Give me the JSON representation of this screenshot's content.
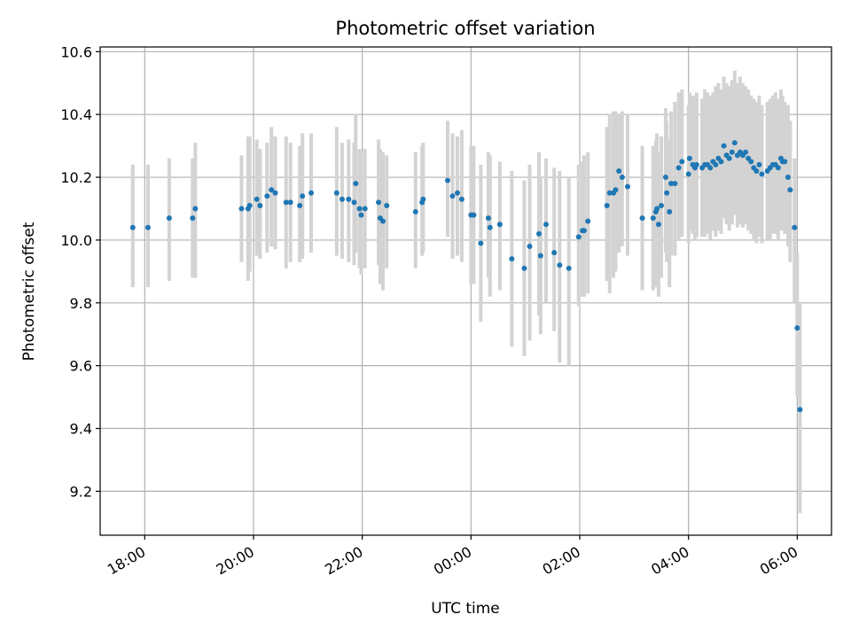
{
  "chart_data": {
    "type": "scatter",
    "title": "Photometric offset variation",
    "xlabel": "UTC time",
    "ylabel": "Photometric offset",
    "xaxis_unit": "hours (UTC, continuing past midnight)",
    "xlim": [
      17.18,
      30.63
    ],
    "ylim": [
      9.06,
      10.615
    ],
    "grid": true,
    "x_ticks": [
      {
        "value": 18,
        "label": "18:00"
      },
      {
        "value": 20,
        "label": "20:00"
      },
      {
        "value": 22,
        "label": "22:00"
      },
      {
        "value": 24,
        "label": "00:00"
      },
      {
        "value": 26,
        "label": "02:00"
      },
      {
        "value": 28,
        "label": "04:00"
      },
      {
        "value": 30,
        "label": "06:00"
      }
    ],
    "y_ticks": [
      {
        "value": 9.2,
        "label": "9.2"
      },
      {
        "value": 9.4,
        "label": "9.4"
      },
      {
        "value": 9.6,
        "label": "9.6"
      },
      {
        "value": 9.8,
        "label": "9.8"
      },
      {
        "value": 10.0,
        "label": "10.0"
      },
      {
        "value": 10.2,
        "label": "10.2"
      },
      {
        "value": 10.4,
        "label": "10.4"
      },
      {
        "value": 10.6,
        "label": "10.6"
      }
    ],
    "colors": {
      "points": "#1f77b4",
      "errorbars": "#d3d3d3",
      "grid": "#b0b0b0"
    },
    "points": [
      [
        17.78,
        10.04,
        9.85,
        10.24
      ],
      [
        18.06,
        10.04,
        9.85,
        10.24
      ],
      [
        18.45,
        10.07,
        9.87,
        10.26
      ],
      [
        18.88,
        10.07,
        9.88,
        10.26
      ],
      [
        18.93,
        10.1,
        9.88,
        10.31
      ],
      [
        19.78,
        10.1,
        9.93,
        10.27
      ],
      [
        19.9,
        10.1,
        9.87,
        10.33
      ],
      [
        19.93,
        10.11,
        9.9,
        10.33
      ],
      [
        20.06,
        10.13,
        9.95,
        10.32
      ],
      [
        20.12,
        10.11,
        9.94,
        10.29
      ],
      [
        20.25,
        10.14,
        9.96,
        10.31
      ],
      [
        20.33,
        10.16,
        9.98,
        10.36
      ],
      [
        20.4,
        10.15,
        9.97,
        10.33
      ],
      [
        20.6,
        10.12,
        9.91,
        10.33
      ],
      [
        20.68,
        10.12,
        9.93,
        10.31
      ],
      [
        20.85,
        10.11,
        9.93,
        10.3
      ],
      [
        20.9,
        10.14,
        9.94,
        10.34
      ],
      [
        21.06,
        10.15,
        9.96,
        10.34
      ],
      [
        21.53,
        10.15,
        9.95,
        10.36
      ],
      [
        21.63,
        10.13,
        9.94,
        10.31
      ],
      [
        21.75,
        10.13,
        9.93,
        10.32
      ],
      [
        21.85,
        10.12,
        9.92,
        10.31
      ],
      [
        21.88,
        10.18,
        9.96,
        10.4
      ],
      [
        21.95,
        10.1,
        9.91,
        10.29
      ],
      [
        21.98,
        10.08,
        9.89,
        10.28
      ],
      [
        22.05,
        10.1,
        9.91,
        10.29
      ],
      [
        22.3,
        10.12,
        9.92,
        10.32
      ],
      [
        22.33,
        10.07,
        9.86,
        10.29
      ],
      [
        22.38,
        10.06,
        9.84,
        10.28
      ],
      [
        22.45,
        10.11,
        9.91,
        10.27
      ],
      [
        22.98,
        10.09,
        9.91,
        10.28
      ],
      [
        23.1,
        10.12,
        9.95,
        10.3
      ],
      [
        23.12,
        10.13,
        9.96,
        10.31
      ],
      [
        23.57,
        10.19,
        10.01,
        10.38
      ],
      [
        23.66,
        10.14,
        9.94,
        10.34
      ],
      [
        23.75,
        10.15,
        9.95,
        10.33
      ],
      [
        23.83,
        10.13,
        9.93,
        10.35
      ],
      [
        24.0,
        10.08,
        9.86,
        10.3
      ],
      [
        24.05,
        10.08,
        9.86,
        10.3
      ],
      [
        24.18,
        9.99,
        9.74,
        10.24
      ],
      [
        24.32,
        10.07,
        9.88,
        10.28
      ],
      [
        24.35,
        10.04,
        9.82,
        10.27
      ],
      [
        24.53,
        10.05,
        9.84,
        10.25
      ],
      [
        24.75,
        9.94,
        9.66,
        10.22
      ],
      [
        24.98,
        9.91,
        9.63,
        10.19
      ],
      [
        25.08,
        9.98,
        9.68,
        10.24
      ],
      [
        25.25,
        10.02,
        9.76,
        10.28
      ],
      [
        25.28,
        9.95,
        9.7,
        10.2
      ],
      [
        25.38,
        10.05,
        9.8,
        10.26
      ],
      [
        25.53,
        9.96,
        9.71,
        10.23
      ],
      [
        25.63,
        9.92,
        9.61,
        10.22
      ],
      [
        25.8,
        9.91,
        9.6,
        10.2
      ],
      [
        25.98,
        10.01,
        9.79,
        10.24
      ],
      [
        26.05,
        10.03,
        9.82,
        10.25
      ],
      [
        26.08,
        10.03,
        9.82,
        10.27
      ],
      [
        26.15,
        10.06,
        9.83,
        10.28
      ],
      [
        26.5,
        10.11,
        9.87,
        10.36
      ],
      [
        26.55,
        10.15,
        9.83,
        10.4
      ],
      [
        26.62,
        10.15,
        9.88,
        10.41
      ],
      [
        26.66,
        10.16,
        9.9,
        10.41
      ],
      [
        26.72,
        10.22,
        9.96,
        10.4
      ],
      [
        26.78,
        10.2,
        9.98,
        10.41
      ],
      [
        26.88,
        10.17,
        9.95,
        10.4
      ],
      [
        27.15,
        10.07,
        9.84,
        10.3
      ],
      [
        27.35,
        10.07,
        9.84,
        10.3
      ],
      [
        27.4,
        10.09,
        9.85,
        10.32
      ],
      [
        27.42,
        10.1,
        9.86,
        10.34
      ],
      [
        27.45,
        10.05,
        9.82,
        10.28
      ],
      [
        27.5,
        10.11,
        9.88,
        10.33
      ],
      [
        27.58,
        10.2,
        9.96,
        10.42
      ],
      [
        27.6,
        10.15,
        9.93,
        10.38
      ],
      [
        27.65,
        10.09,
        9.85,
        10.32
      ],
      [
        27.68,
        10.18,
        9.95,
        10.41
      ],
      [
        27.75,
        10.18,
        9.95,
        10.44
      ],
      [
        27.82,
        10.23,
        10.0,
        10.47
      ],
      [
        27.88,
        10.25,
        10.01,
        10.48
      ],
      [
        28.0,
        10.21,
        9.99,
        10.43
      ],
      [
        28.02,
        10.26,
        10.03,
        10.47
      ],
      [
        28.08,
        10.24,
        10.02,
        10.46
      ],
      [
        28.12,
        10.23,
        10.0,
        10.45
      ],
      [
        28.15,
        10.24,
        10.01,
        10.47
      ],
      [
        28.25,
        10.23,
        10.01,
        10.45
      ],
      [
        28.3,
        10.24,
        10.01,
        10.48
      ],
      [
        28.35,
        10.24,
        10.02,
        10.47
      ],
      [
        28.4,
        10.23,
        10.0,
        10.46
      ],
      [
        28.45,
        10.25,
        10.03,
        10.47
      ],
      [
        28.5,
        10.24,
        10.01,
        10.49
      ],
      [
        28.55,
        10.26,
        10.03,
        10.5
      ],
      [
        28.6,
        10.25,
        10.02,
        10.48
      ],
      [
        28.65,
        10.3,
        10.07,
        10.52
      ],
      [
        28.7,
        10.27,
        10.05,
        10.5
      ],
      [
        28.75,
        10.26,
        10.03,
        10.49
      ],
      [
        28.8,
        10.28,
        10.05,
        10.51
      ],
      [
        28.85,
        10.31,
        10.08,
        10.54
      ],
      [
        28.9,
        10.27,
        10.04,
        10.5
      ],
      [
        28.95,
        10.28,
        10.05,
        10.52
      ],
      [
        29.0,
        10.27,
        10.04,
        10.5
      ],
      [
        29.05,
        10.28,
        10.05,
        10.49
      ],
      [
        29.1,
        10.26,
        10.03,
        10.48
      ],
      [
        29.15,
        10.25,
        10.02,
        10.46
      ],
      [
        29.2,
        10.23,
        10.0,
        10.45
      ],
      [
        29.25,
        10.22,
        9.99,
        10.44
      ],
      [
        29.3,
        10.24,
        10.01,
        10.46
      ],
      [
        29.35,
        10.21,
        9.99,
        10.43
      ],
      [
        29.45,
        10.22,
        10.0,
        10.44
      ],
      [
        29.5,
        10.23,
        10.0,
        10.45
      ],
      [
        29.55,
        10.24,
        10.02,
        10.46
      ],
      [
        29.6,
        10.24,
        10.02,
        10.47
      ],
      [
        29.65,
        10.23,
        10.0,
        10.45
      ],
      [
        29.7,
        10.26,
        10.03,
        10.48
      ],
      [
        29.73,
        10.25,
        10.03,
        10.46
      ],
      [
        29.77,
        10.25,
        10.02,
        10.44
      ],
      [
        29.83,
        10.2,
        9.98,
        10.43
      ],
      [
        29.87,
        10.16,
        9.93,
        10.38
      ],
      [
        29.95,
        10.04,
        9.8,
        10.26
      ],
      [
        30.0,
        9.72,
        9.5,
        9.96
      ],
      [
        30.05,
        9.46,
        9.13,
        9.8
      ]
    ]
  }
}
